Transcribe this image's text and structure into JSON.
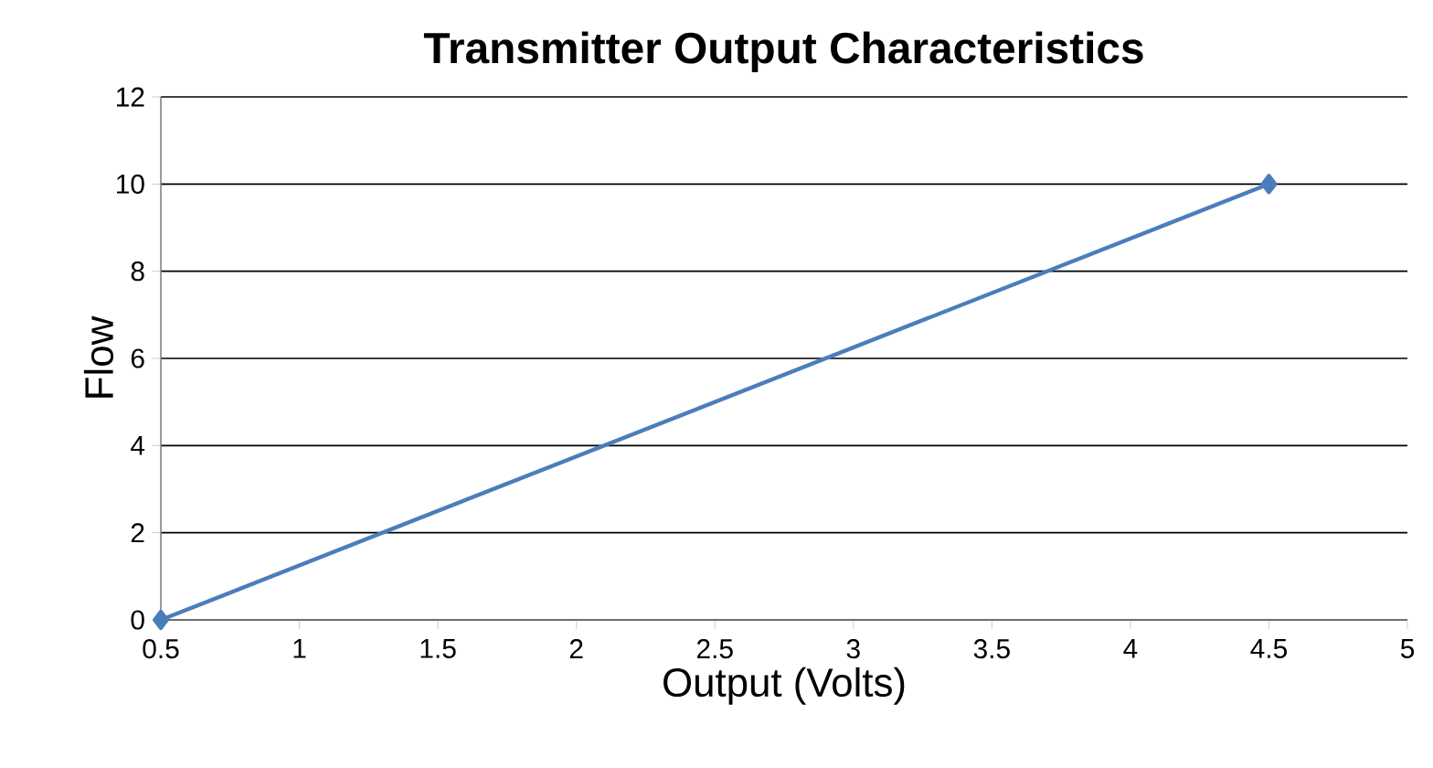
{
  "chart_data": {
    "type": "line",
    "title": "Transmitter Output Characteristics",
    "xlabel": "Output (Volts)",
    "ylabel": "Flow",
    "x": [
      0.5,
      4.5
    ],
    "series": [
      {
        "color": "#4a7ebb",
        "values": [
          0,
          10
        ]
      }
    ],
    "xlim": [
      0.5,
      5
    ],
    "xticks": [
      0.5,
      1,
      1.5,
      2,
      2.5,
      3,
      3.5,
      4,
      4.5,
      5
    ],
    "ylim": [
      0,
      12
    ],
    "yticks": [
      0,
      2,
      4,
      6,
      8,
      10,
      12
    ],
    "grid": "y",
    "legend": false,
    "marker": "diamond",
    "line_style": "solid"
  }
}
